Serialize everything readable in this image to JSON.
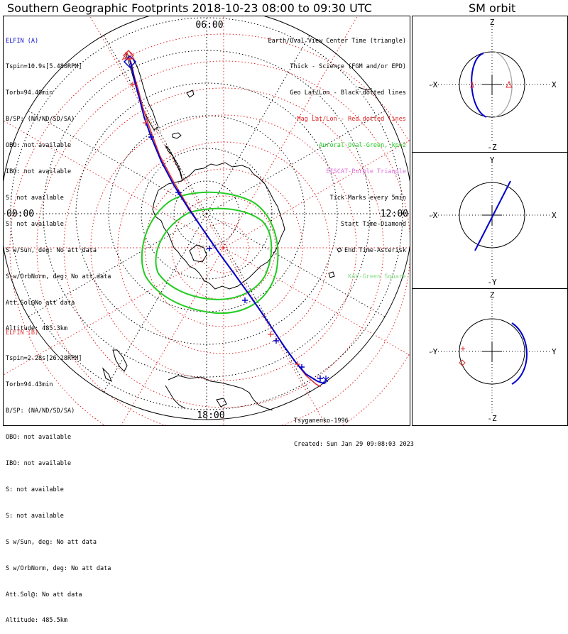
{
  "title": "Southern Geographic Footprints 2018-10-23 08:00 to 09:30 UTC",
  "sm_title": "SM orbit",
  "clock_labels": {
    "top": "06:00",
    "left": "00:00",
    "right": "12:00",
    "bottom": "18:00"
  },
  "elfin_a": {
    "name": "ELFIN (A)",
    "lines": [
      "Tspin=10.9s[5.480RPM]",
      "Torb=94.40min",
      "B/SP: (NA/ND/SD/SA)",
      "OBO: not available",
      "IBO: not available",
      "S: not available",
      "S: not available",
      "S w/Sun, deg: No att data",
      "S w/OrbNorm, deg: No att data",
      "Att.Sol@No att data",
      "Altitude: 485.3km"
    ]
  },
  "elfin_b": {
    "name": "ELFIN (B)",
    "lines": [
      "Tspin=2.28s[26.28RPM]",
      "Torb=94.43min",
      "B/SP: (NA/ND/SD/SA)",
      "OBO: not available",
      "IBO: not available",
      "S: not available",
      "S: not available",
      "S w/Sun, deg: No att data",
      "S w/OrbNorm, deg: No att data",
      "Att.Sol@: No att data",
      "Altitude: 485.5km"
    ]
  },
  "legend": [
    {
      "text": "Earth/Oval View Center Time (triangle)",
      "color": "#000000"
    },
    {
      "text": "Thick - Science (FGM and/or EPD)",
      "color": "#000000"
    },
    {
      "text": "Geo Lat/Lon - Black dotted lines",
      "color": "#000000"
    },
    {
      "text": "Mag Lat/Lon - Red dotted lines",
      "color": "#e02020"
    },
    {
      "text": "Auroral Oval-Green, kp=2",
      "color": "#22cc22"
    },
    {
      "text": "EISCAT-Purple Triangle",
      "color": "#e070e0"
    },
    {
      "text": "Tick Marks every 5min",
      "color": "#000000"
    },
    {
      "text": "Start Time-Diamond",
      "color": "#000000"
    },
    {
      "text": "End Time-Asterisk",
      "color": "#000000"
    },
    {
      "text": "KAV-Green Square",
      "color": "#88dd88"
    }
  ],
  "credit": [
    "Tsyganenko-1996",
    "Created: Sun Jan 29 09:08:03 2023"
  ],
  "orbit_panels": [
    {
      "name": "xz",
      "top": "Z",
      "bottom": "-Z",
      "left": "-X",
      "right": "X"
    },
    {
      "name": "xy",
      "top": "Y",
      "bottom": "-Y",
      "left": "-X",
      "right": "X"
    },
    {
      "name": "yz",
      "top": "Z",
      "bottom": "-Z",
      "left": "-Y",
      "right": "Y"
    }
  ],
  "colors": {
    "elfin_a": "#0000cc",
    "elfin_b": "#e03030",
    "aurora": "#22cc22",
    "continent": "#000000",
    "mag_grid": "#e02020",
    "geo_grid": "#000000"
  }
}
